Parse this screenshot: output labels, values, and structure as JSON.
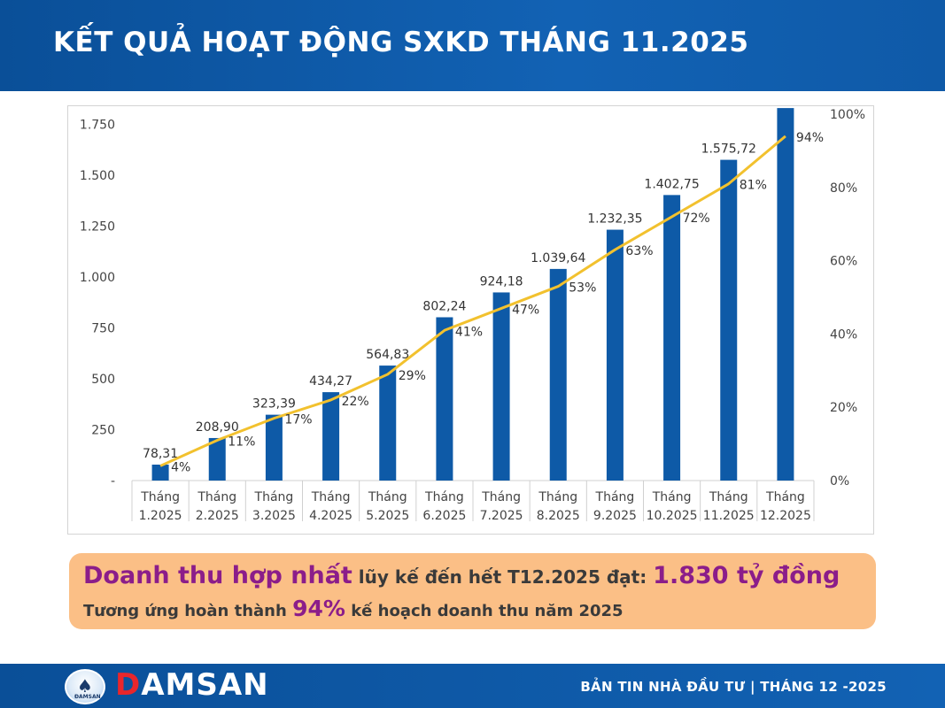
{
  "header": {
    "title": "KẾT QUẢ HOẠT ĐỘNG SXKD THÁNG 11.2025"
  },
  "chart_data": {
    "type": "bar",
    "categories": [
      [
        "Tháng",
        "1.2025"
      ],
      [
        "Tháng",
        "2.2025"
      ],
      [
        "Tháng",
        "3.2025"
      ],
      [
        "Tháng",
        "4.2025"
      ],
      [
        "Tháng",
        "5.2025"
      ],
      [
        "Tháng",
        "6.2025"
      ],
      [
        "Tháng",
        "7.2025"
      ],
      [
        "Tháng",
        "8.2025"
      ],
      [
        "Tháng",
        "9.2025"
      ],
      [
        "Tháng",
        "10.2025"
      ],
      [
        "Tháng",
        "11.2025"
      ],
      [
        "Tháng",
        "12.2025"
      ]
    ],
    "values": [
      78.31,
      208.9,
      323.39,
      434.27,
      564.83,
      802.24,
      924.18,
      1039.64,
      1232.35,
      1402.75,
      1575.72,
      1830
    ],
    "value_labels": [
      "78,31",
      "208,90",
      "323,39",
      "434,27",
      "564,83",
      "802,24",
      "924,18",
      "1.039,64",
      "1.232,35",
      "1.402,75",
      "1.575,72",
      ""
    ],
    "line_values": [
      4,
      11,
      17,
      22,
      29,
      41,
      47,
      53,
      63,
      72,
      81,
      94
    ],
    "line_labels": [
      "4%",
      "11%",
      "17%",
      "22%",
      "29%",
      "41%",
      "47%",
      "53%",
      "63%",
      "72%",
      "81%",
      "94%"
    ],
    "ylim": [
      0,
      1800
    ],
    "y_ticks": [
      0,
      250,
      500,
      750,
      1000,
      1250,
      1500,
      1750
    ],
    "y_tick_labels": [
      "-",
      "250",
      "500",
      "750",
      "1.000",
      "1.250",
      "1.500",
      "1.750"
    ],
    "y2lim": [
      0,
      100
    ],
    "y2_ticks": [
      0,
      20,
      40,
      60,
      80,
      100
    ],
    "y2_tick_labels": [
      "0%",
      "20%",
      "40%",
      "60%",
      "80%",
      "100%"
    ],
    "bar_color": "#0e5aa7",
    "line_color": "#f2c12e",
    "grid": false
  },
  "summary": {
    "line1_highlight": "Doanh thu hợp nhất",
    "line1_text": " lũy kế đến hết T12.2025 đạt: ",
    "line1_value": "1.830 tỷ đồng",
    "line2_text": "Tương ứng hoàn thành ",
    "line2_value": "94%",
    "line2_tail": " kế hoạch doanh thu năm 2025"
  },
  "footer": {
    "logo_small_text": "ĐAMSAN",
    "brand_first": "D",
    "brand_rest": "AMSAN",
    "right_text": "BẢN TIN NHÀ ĐẦU TƯ  |  THÁNG 12 -2025"
  },
  "colors": {
    "header_bg": "#0f5aa8",
    "summary_bg": "#fbbf86",
    "highlight": "#8b1d8a",
    "brand_red": "#e8262b"
  }
}
